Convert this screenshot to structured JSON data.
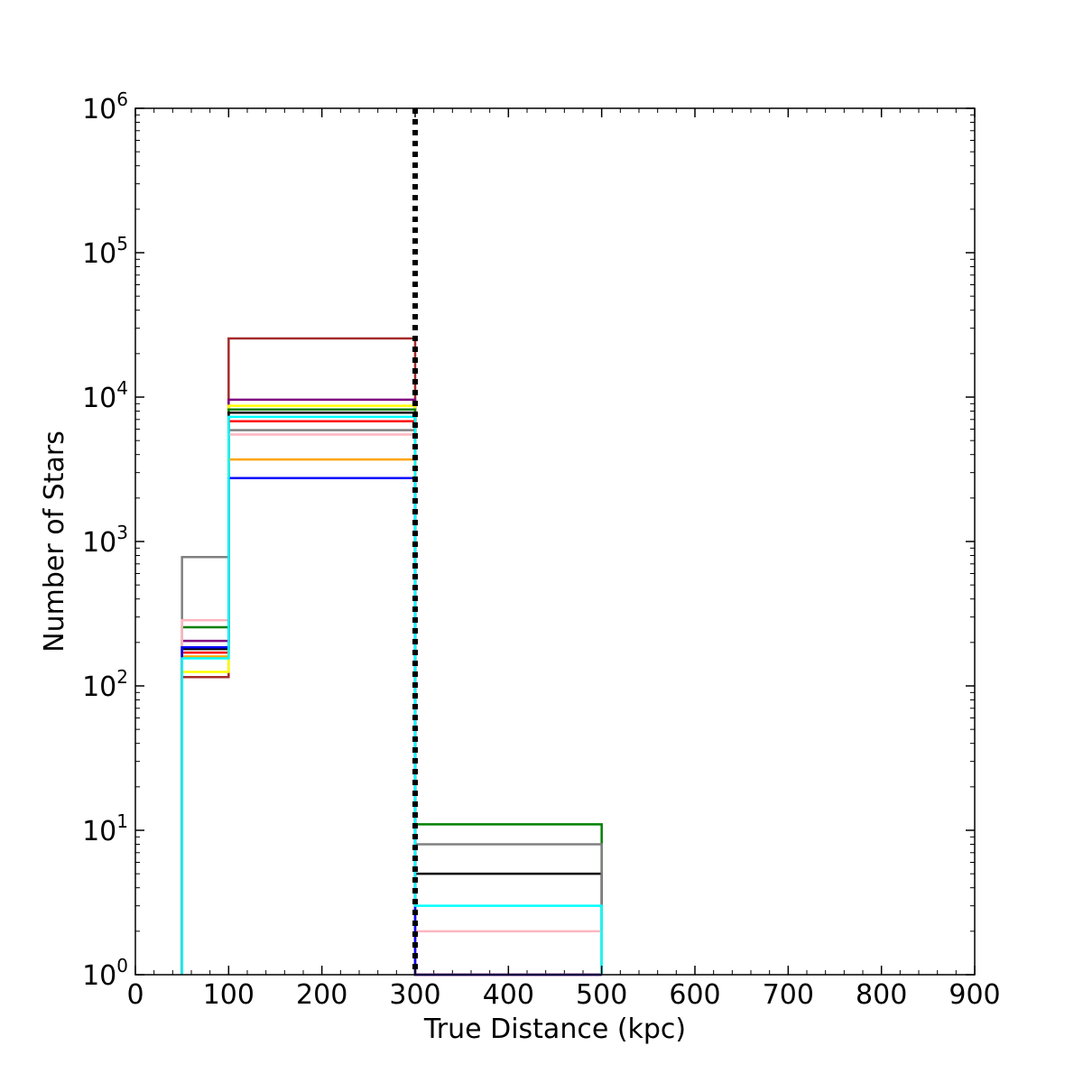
{
  "chart_data": {
    "type": "histogram",
    "xlabel": "True Distance (kpc)",
    "ylabel": "Number of Stars",
    "xlim": [
      0,
      900
    ],
    "ylim": [
      1,
      1000000
    ],
    "yscale": "log",
    "grid": false,
    "legend": "none",
    "x_ticks": [
      0,
      100,
      200,
      300,
      400,
      500,
      600,
      700,
      800,
      900
    ],
    "y_ticks": [
      {
        "base": "10",
        "exp": "0",
        "value": 1
      },
      {
        "base": "10",
        "exp": "1",
        "value": 10
      },
      {
        "base": "10",
        "exp": "2",
        "value": 100
      },
      {
        "base": "10",
        "exp": "3",
        "value": 1000
      },
      {
        "base": "10",
        "exp": "4",
        "value": 10000
      },
      {
        "base": "10",
        "exp": "5",
        "value": 100000
      },
      {
        "base": "10",
        "exp": "6",
        "value": 1000000
      }
    ],
    "bin_edges": [
      50,
      100,
      300,
      500
    ],
    "vline": {
      "x": 300,
      "color": "#000000",
      "style": "dotted"
    },
    "series": [
      {
        "color": "#a52a2a",
        "values": [
          115,
          25500,
          1
        ]
      },
      {
        "color": "#800080",
        "values": [
          205,
          9600,
          1
        ]
      },
      {
        "color": "#ffff00",
        "values": [
          125,
          8700,
          1
        ]
      },
      {
        "color": "#008000",
        "values": [
          255,
          8200,
          11
        ]
      },
      {
        "color": "#000000",
        "values": [
          180,
          7800,
          5
        ]
      },
      {
        "color": "#ff0000",
        "values": [
          170,
          6800,
          1
        ]
      },
      {
        "color": "#808080",
        "values": [
          780,
          5900,
          8
        ]
      },
      {
        "color": "#ffb6c1",
        "values": [
          285,
          5500,
          2
        ]
      },
      {
        "color": "#ffa500",
        "values": [
          160,
          3700,
          1
        ]
      },
      {
        "color": "#0000ff",
        "values": [
          185,
          2750,
          1
        ]
      },
      {
        "color": "#00ffff",
        "values": [
          155,
          7300,
          3
        ]
      }
    ]
  }
}
